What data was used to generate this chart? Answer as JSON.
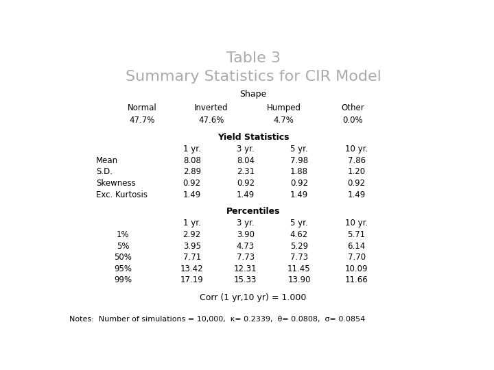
{
  "title_line1": "Table 3",
  "title_line2": "Summary Statistics for CIR Model",
  "title_color": "#aaaaaa",
  "bg_color": "#ffffff",
  "shape_header": "Shape",
  "shape_cols": [
    "Normal",
    "Inverted",
    "Humped",
    "Other"
  ],
  "shape_vals": [
    "47.7%",
    "47.6%",
    "4.7%",
    "0.0%"
  ],
  "yield_header": "Yield Statistics",
  "yield_cols": [
    "1 yr.",
    "3 yr.",
    "5 yr.",
    "10 yr."
  ],
  "yield_rows": [
    [
      "Mean",
      "8.08",
      "8.04",
      "7.98",
      "7.86"
    ],
    [
      "S.D.",
      "2.89",
      "2.31",
      "1.88",
      "1.20"
    ],
    [
      "Skewness",
      "0.92",
      "0.92",
      "0.92",
      "0.92"
    ],
    [
      "Exc. Kurtosis",
      "1.49",
      "1.49",
      "1.49",
      "1.49"
    ]
  ],
  "pct_header": "Percentiles",
  "pct_cols": [
    "1 yr.",
    "3 yr.",
    "5 yr.",
    "10 yr."
  ],
  "pct_rows": [
    [
      "1%",
      "2.92",
      "3.90",
      "4.62",
      "5.71"
    ],
    [
      "5%",
      "3.95",
      "4.73",
      "5.29",
      "6.14"
    ],
    [
      "50%",
      "7.71",
      "7.73",
      "7.73",
      "7.70"
    ],
    [
      "95%",
      "13.42",
      "12.31",
      "11.45",
      "10.09"
    ],
    [
      "99%",
      "17.19",
      "15.33",
      "13.90",
      "11.66"
    ]
  ],
  "corr_line": "Corr (1 yr,10 yr) = 1.000",
  "notes_line": "Notes:  Number of simulations = 10,000,  κ= 0.2339,  θ= 0.0808,  σ= 0.0854",
  "text_color": "#000000",
  "header_fontsize": 9,
  "body_fontsize": 8.5,
  "title_fontsize1": 16,
  "title_fontsize2": 16,
  "notes_fontsize": 8,
  "corr_fontsize": 9
}
